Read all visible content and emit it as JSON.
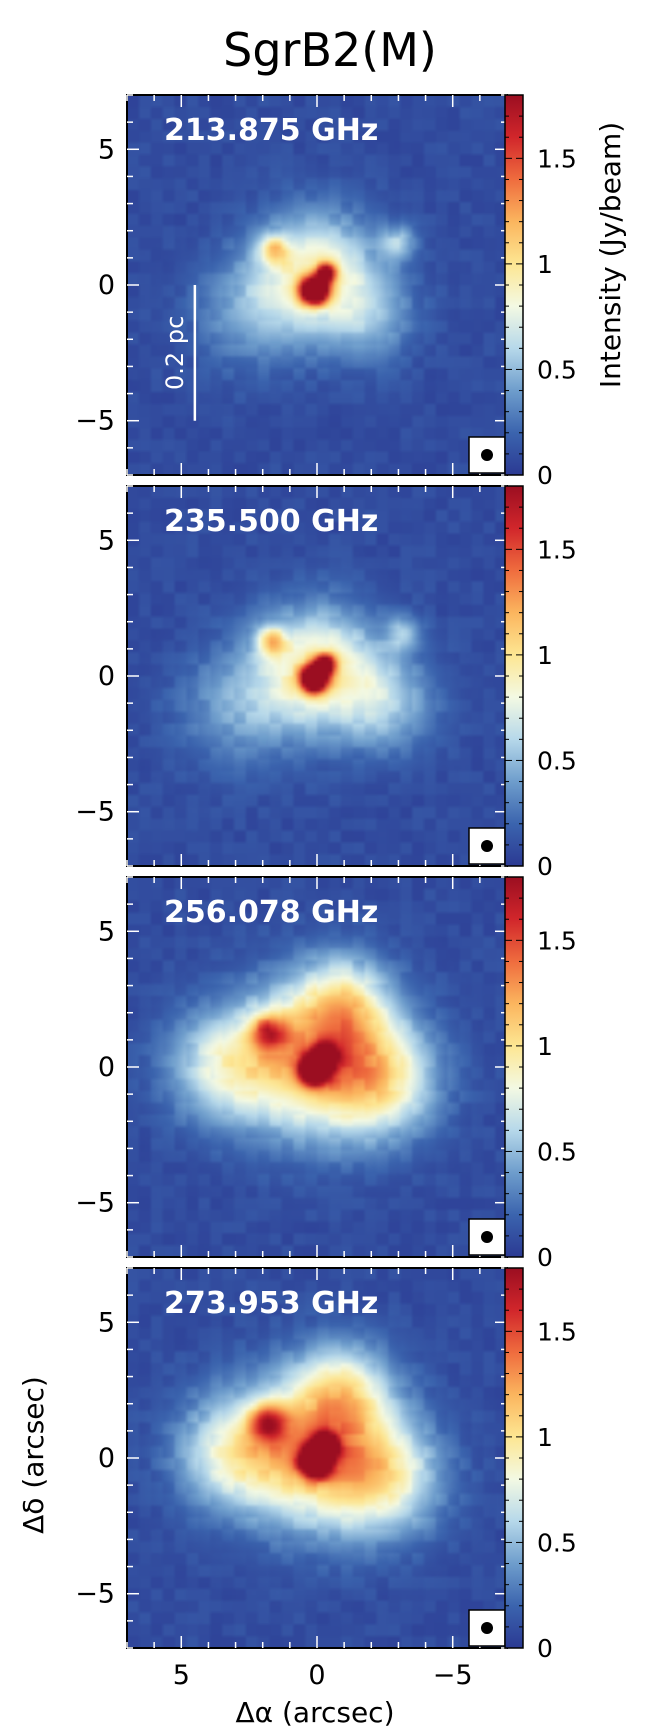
{
  "chart_data": {
    "type": "heatmap",
    "title": "SgrB2(M)",
    "xlabel": "Δα (arcsec)",
    "ylabel": "Δδ (arcsec)",
    "xlim": [
      7,
      -7
    ],
    "ylim": [
      -7,
      7
    ],
    "xticks": [
      5,
      0,
      -5
    ],
    "xtick_labels": [
      "5",
      "0",
      "−5"
    ],
    "yticks": [
      5,
      0,
      -5
    ],
    "ytick_labels": [
      "5",
      "0",
      "−5"
    ],
    "colorbar": {
      "label": "Intensity (Jy/beam)",
      "range": [
        0,
        1.8
      ],
      "ticks": [
        0,
        0.5,
        1,
        1.5
      ],
      "tick_labels": [
        "0",
        "0.5",
        "1",
        "1.5"
      ],
      "colormap": [
        "#2b3a93",
        "#3b64ae",
        "#6e9dcc",
        "#b6d8ea",
        "#f3f9e3",
        "#fde692",
        "#fbb55e",
        "#ef6c3e",
        "#d1262b",
        "#9b0e21"
      ]
    },
    "scale_bar": {
      "label": "0.2 pc",
      "x": 4.5,
      "y_from": 0,
      "y_to": -5
    },
    "beam_marker": "filled-circle",
    "panels": [
      {
        "label": "213.875 GHz",
        "peak_value": 1.75,
        "sources": [
          {
            "x": 0.1,
            "y": -0.2,
            "amp": 1.0,
            "sigma": 0.35
          },
          {
            "x": -0.35,
            "y": 0.45,
            "amp": 0.55,
            "sigma": 0.25
          },
          {
            "x": 0.0,
            "y": 0.5,
            "amp": 0.45,
            "sigma": 1.6
          },
          {
            "x": 1.6,
            "y": 1.3,
            "amp": 0.35,
            "sigma": 0.4
          },
          {
            "x": -3.0,
            "y": 1.6,
            "amp": 0.25,
            "sigma": 0.45
          },
          {
            "x": 2.5,
            "y": -1.0,
            "amp": 0.2,
            "sigma": 1.5
          },
          {
            "x": -2.0,
            "y": -1.2,
            "amp": 0.2,
            "sigma": 1.2
          }
        ]
      },
      {
        "label": "235.500 GHz",
        "peak_value": 1.75,
        "sources": [
          {
            "x": 0.1,
            "y": -0.1,
            "amp": 1.0,
            "sigma": 0.33
          },
          {
            "x": -0.3,
            "y": 0.45,
            "amp": 0.6,
            "sigma": 0.25
          },
          {
            "x": 0.0,
            "y": 0.3,
            "amp": 0.5,
            "sigma": 1.6
          },
          {
            "x": 1.7,
            "y": 1.3,
            "amp": 0.35,
            "sigma": 0.4
          },
          {
            "x": -3.2,
            "y": 1.6,
            "amp": 0.25,
            "sigma": 0.45
          },
          {
            "x": -2.6,
            "y": -1.0,
            "amp": 0.25,
            "sigma": 1.3
          },
          {
            "x": 3.0,
            "y": -1.2,
            "amp": 0.2,
            "sigma": 1.6
          }
        ]
      },
      {
        "label": "256.078 GHz",
        "peak_value": 1.75,
        "sources": [
          {
            "x": 0.1,
            "y": -0.1,
            "amp": 1.0,
            "sigma": 0.35
          },
          {
            "x": -0.3,
            "y": 0.4,
            "amp": 0.7,
            "sigma": 0.3
          },
          {
            "x": 0.0,
            "y": 0.3,
            "amp": 0.6,
            "sigma": 2.0
          },
          {
            "x": 1.8,
            "y": 1.3,
            "amp": 0.4,
            "sigma": 0.5
          },
          {
            "x": 3.5,
            "y": 0.0,
            "amp": 0.35,
            "sigma": 1.5
          },
          {
            "x": -2.5,
            "y": -0.5,
            "amp": 0.35,
            "sigma": 1.5
          },
          {
            "x": -1.0,
            "y": 2.5,
            "amp": 0.3,
            "sigma": 1.2
          }
        ]
      },
      {
        "label": "273.953 GHz",
        "peak_value": 1.75,
        "sources": [
          {
            "x": 0.05,
            "y": -0.1,
            "amp": 1.0,
            "sigma": 0.38
          },
          {
            "x": -0.3,
            "y": 0.45,
            "amp": 0.8,
            "sigma": 0.3
          },
          {
            "x": 0.0,
            "y": 0.3,
            "amp": 0.6,
            "sigma": 2.0
          },
          {
            "x": 1.8,
            "y": 1.3,
            "amp": 0.4,
            "sigma": 0.5
          },
          {
            "x": 3.2,
            "y": 0.2,
            "amp": 0.35,
            "sigma": 1.5
          },
          {
            "x": -2.6,
            "y": -0.8,
            "amp": 0.35,
            "sigma": 1.5
          },
          {
            "x": -1.0,
            "y": 2.6,
            "amp": 0.3,
            "sigma": 1.2
          }
        ]
      }
    ]
  }
}
